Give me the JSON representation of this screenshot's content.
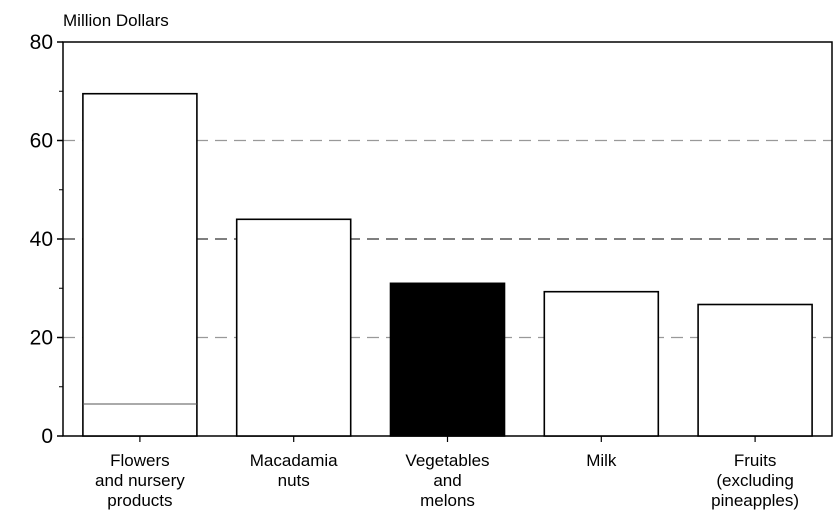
{
  "chart_data": {
    "type": "bar",
    "ylabel": "Million Dollars",
    "ylim": [
      0,
      80
    ],
    "yticks": [
      0,
      20,
      40,
      60,
      80
    ],
    "categories": [
      [
        "Flowers",
        "and nursery",
        "products"
      ],
      [
        "Macadamia",
        "nuts"
      ],
      [
        "Vegetables",
        "and",
        "melons"
      ],
      [
        "Milk"
      ],
      [
        "Fruits",
        "(excluding",
        "pineapples)"
      ]
    ],
    "values": [
      69.5,
      44,
      31,
      29.3,
      26.7
    ],
    "inner_line_value": 6.5,
    "grid": "dashed horizontal at 20, 40, 60",
    "colors": {
      "bar_fill": "#ffffff",
      "highlight_fill": "#000000",
      "highlight_index": 2,
      "grid": "#999999",
      "grid_dark": "#333333"
    }
  }
}
